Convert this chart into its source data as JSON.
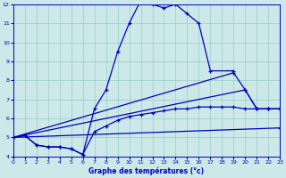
{
  "xlabel": "Graphe des températures (°c)",
  "background_color": "#cce8e8",
  "line_color": "#0000bb",
  "grid_color": "#99cccc",
  "xlim": [
    0,
    23
  ],
  "ylim": [
    4,
    12
  ],
  "xticks": [
    0,
    1,
    2,
    3,
    4,
    5,
    6,
    7,
    8,
    9,
    10,
    11,
    12,
    13,
    14,
    15,
    16,
    17,
    18,
    19,
    20,
    21,
    22,
    23
  ],
  "yticks": [
    4,
    5,
    6,
    7,
    8,
    9,
    10,
    11,
    12
  ],
  "line1": {
    "x": [
      0,
      1,
      2,
      3,
      4,
      5,
      6,
      7,
      8,
      9,
      10,
      11,
      12,
      13,
      14,
      15,
      16,
      17,
      19
    ],
    "y": [
      5.0,
      5.1,
      4.6,
      4.5,
      4.5,
      4.4,
      4.1,
      6.5,
      7.5,
      9.5,
      11.0,
      12.2,
      12.0,
      11.8,
      12.0,
      11.5,
      11.0,
      8.5,
      8.5
    ]
  },
  "line2": {
    "x": [
      0,
      1,
      2,
      3,
      4,
      5,
      6,
      7,
      8,
      9,
      10,
      11,
      12,
      13,
      14,
      15,
      16,
      17,
      18,
      19,
      20,
      21,
      22,
      23
    ],
    "y": [
      5.0,
      5.1,
      4.6,
      4.5,
      4.5,
      4.4,
      4.1,
      5.3,
      5.6,
      5.9,
      6.1,
      6.2,
      6.3,
      6.4,
      6.5,
      6.5,
      6.6,
      6.6,
      6.6,
      6.6,
      6.5,
      6.5,
      6.5,
      6.5
    ]
  },
  "line3": {
    "x": [
      0,
      23
    ],
    "y": [
      5.0,
      5.5
    ]
  },
  "line4": {
    "x": [
      0,
      19,
      20,
      21,
      22,
      23
    ],
    "y": [
      5.0,
      8.4,
      7.5,
      6.5,
      6.5,
      6.5
    ]
  },
  "line5": {
    "x": [
      0,
      20,
      21,
      22,
      23
    ],
    "y": [
      5.0,
      7.5,
      6.5,
      6.5,
      6.5
    ]
  }
}
